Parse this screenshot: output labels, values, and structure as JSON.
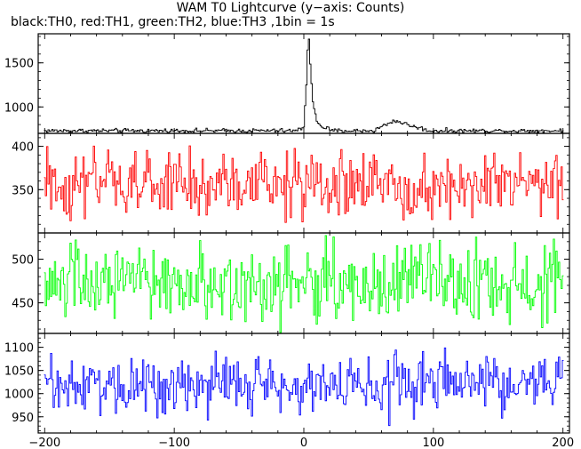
{
  "title": "WAM T0 Lightcurve (y−axis: Counts)",
  "subtitle": "black:TH0, red:TH1, green:TH2, blue:TH3 ,1bin = 1s",
  "chart_data": [
    {
      "type": "line",
      "name": "TH0",
      "color": "#000000",
      "xlim": [
        -205,
        205
      ],
      "ylim": [
        700,
        1830
      ],
      "yticks": [
        1000,
        1500
      ],
      "yticklabels": [
        "1000",
        "1500"
      ],
      "baseline": 730,
      "noise": 12,
      "features": [
        {
          "kind": "burst",
          "x": [
            -5,
            0,
            2,
            3,
            4,
            5,
            7,
            10,
            15,
            20
          ],
          "y": [
            730,
            780,
            1250,
            1650,
            1780,
            1500,
            1050,
            830,
            770,
            745
          ]
        },
        {
          "kind": "bump",
          "x": [
            55,
            62,
            70,
            75,
            85,
            95
          ],
          "y": [
            740,
            790,
            845,
            825,
            775,
            742
          ]
        }
      ]
    },
    {
      "type": "line",
      "name": "TH1",
      "color": "#ff0000",
      "xlim": [
        -205,
        205
      ],
      "ylim": [
        300,
        415
      ],
      "yticks": [
        350,
        400
      ],
      "yticklabels": [
        "350",
        "400"
      ],
      "baseline": 355,
      "noise": 20
    },
    {
      "type": "line",
      "name": "TH2",
      "color": "#00ff00",
      "xlim": [
        -205,
        205
      ],
      "ylim": [
        415,
        530
      ],
      "yticks": [
        450,
        500
      ],
      "yticklabels": [
        "450",
        "500"
      ],
      "baseline": 472,
      "noise": 23
    },
    {
      "type": "line",
      "name": "TH3",
      "color": "#0000ff",
      "xlim": [
        -205,
        205
      ],
      "ylim": [
        915,
        1130
      ],
      "yticks": [
        950,
        1000,
        1050,
        1100
      ],
      "yticklabels": [
        "950",
        "1000",
        "1050",
        "1100"
      ],
      "baseline": 1020,
      "noise": 32
    }
  ],
  "xaxis": {
    "ticks": [
      -200,
      -100,
      0,
      100,
      200
    ],
    "ticklabels": [
      "−200",
      "−100",
      "0",
      "100",
      "200"
    ],
    "range": [
      -200,
      200
    ],
    "bin": 1
  }
}
